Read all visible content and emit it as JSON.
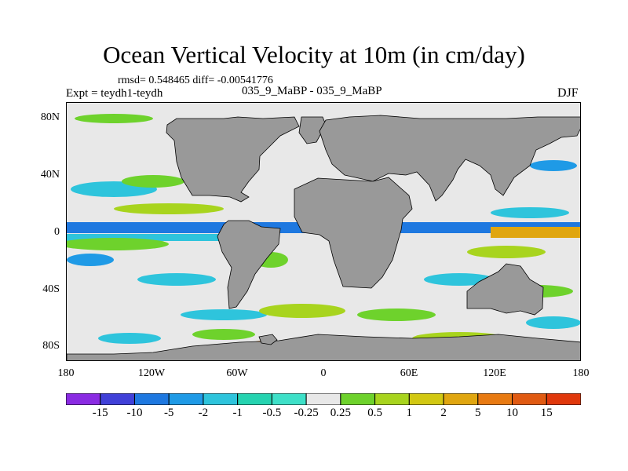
{
  "header": {
    "title": "Ocean Vertical Velocity at 10m (in cm/day)",
    "stats": "rmsd= 0.548465 diff= -0.00541776",
    "expt": "Expt = teydh1-teydh",
    "cases": "035_9_MaBP - 035_9_MaBP",
    "season": "DJF"
  },
  "map": {
    "projection": "cylindrical equidistant",
    "lon_range": [
      -180,
      180
    ],
    "lat_range": [
      -90,
      90
    ],
    "land_color": "#999999",
    "ocean_background_color": "#e8e8e8",
    "lat_labels": [
      "80N",
      "40N",
      "0",
      "40S",
      "80S"
    ],
    "lon_labels": [
      "180",
      "120W",
      "60W",
      "0",
      "60E",
      "120E",
      "180"
    ]
  },
  "colorbar": {
    "levels": [
      "-15",
      "-10",
      "-5",
      "-2",
      "-1",
      "-0.5",
      "-0.25",
      "0.25",
      "0.5",
      "1",
      "2",
      "5",
      "10",
      "15"
    ],
    "colors": [
      "#8a2be2",
      "#4040d8",
      "#1e78e0",
      "#1f9ae6",
      "#2ec4dc",
      "#25d3b0",
      "#3ee0c8",
      "#e8e8e8",
      "#6ed22c",
      "#a8d41e",
      "#d2c812",
      "#e0a610",
      "#e87a12",
      "#e05a12",
      "#e0380c"
    ]
  }
}
